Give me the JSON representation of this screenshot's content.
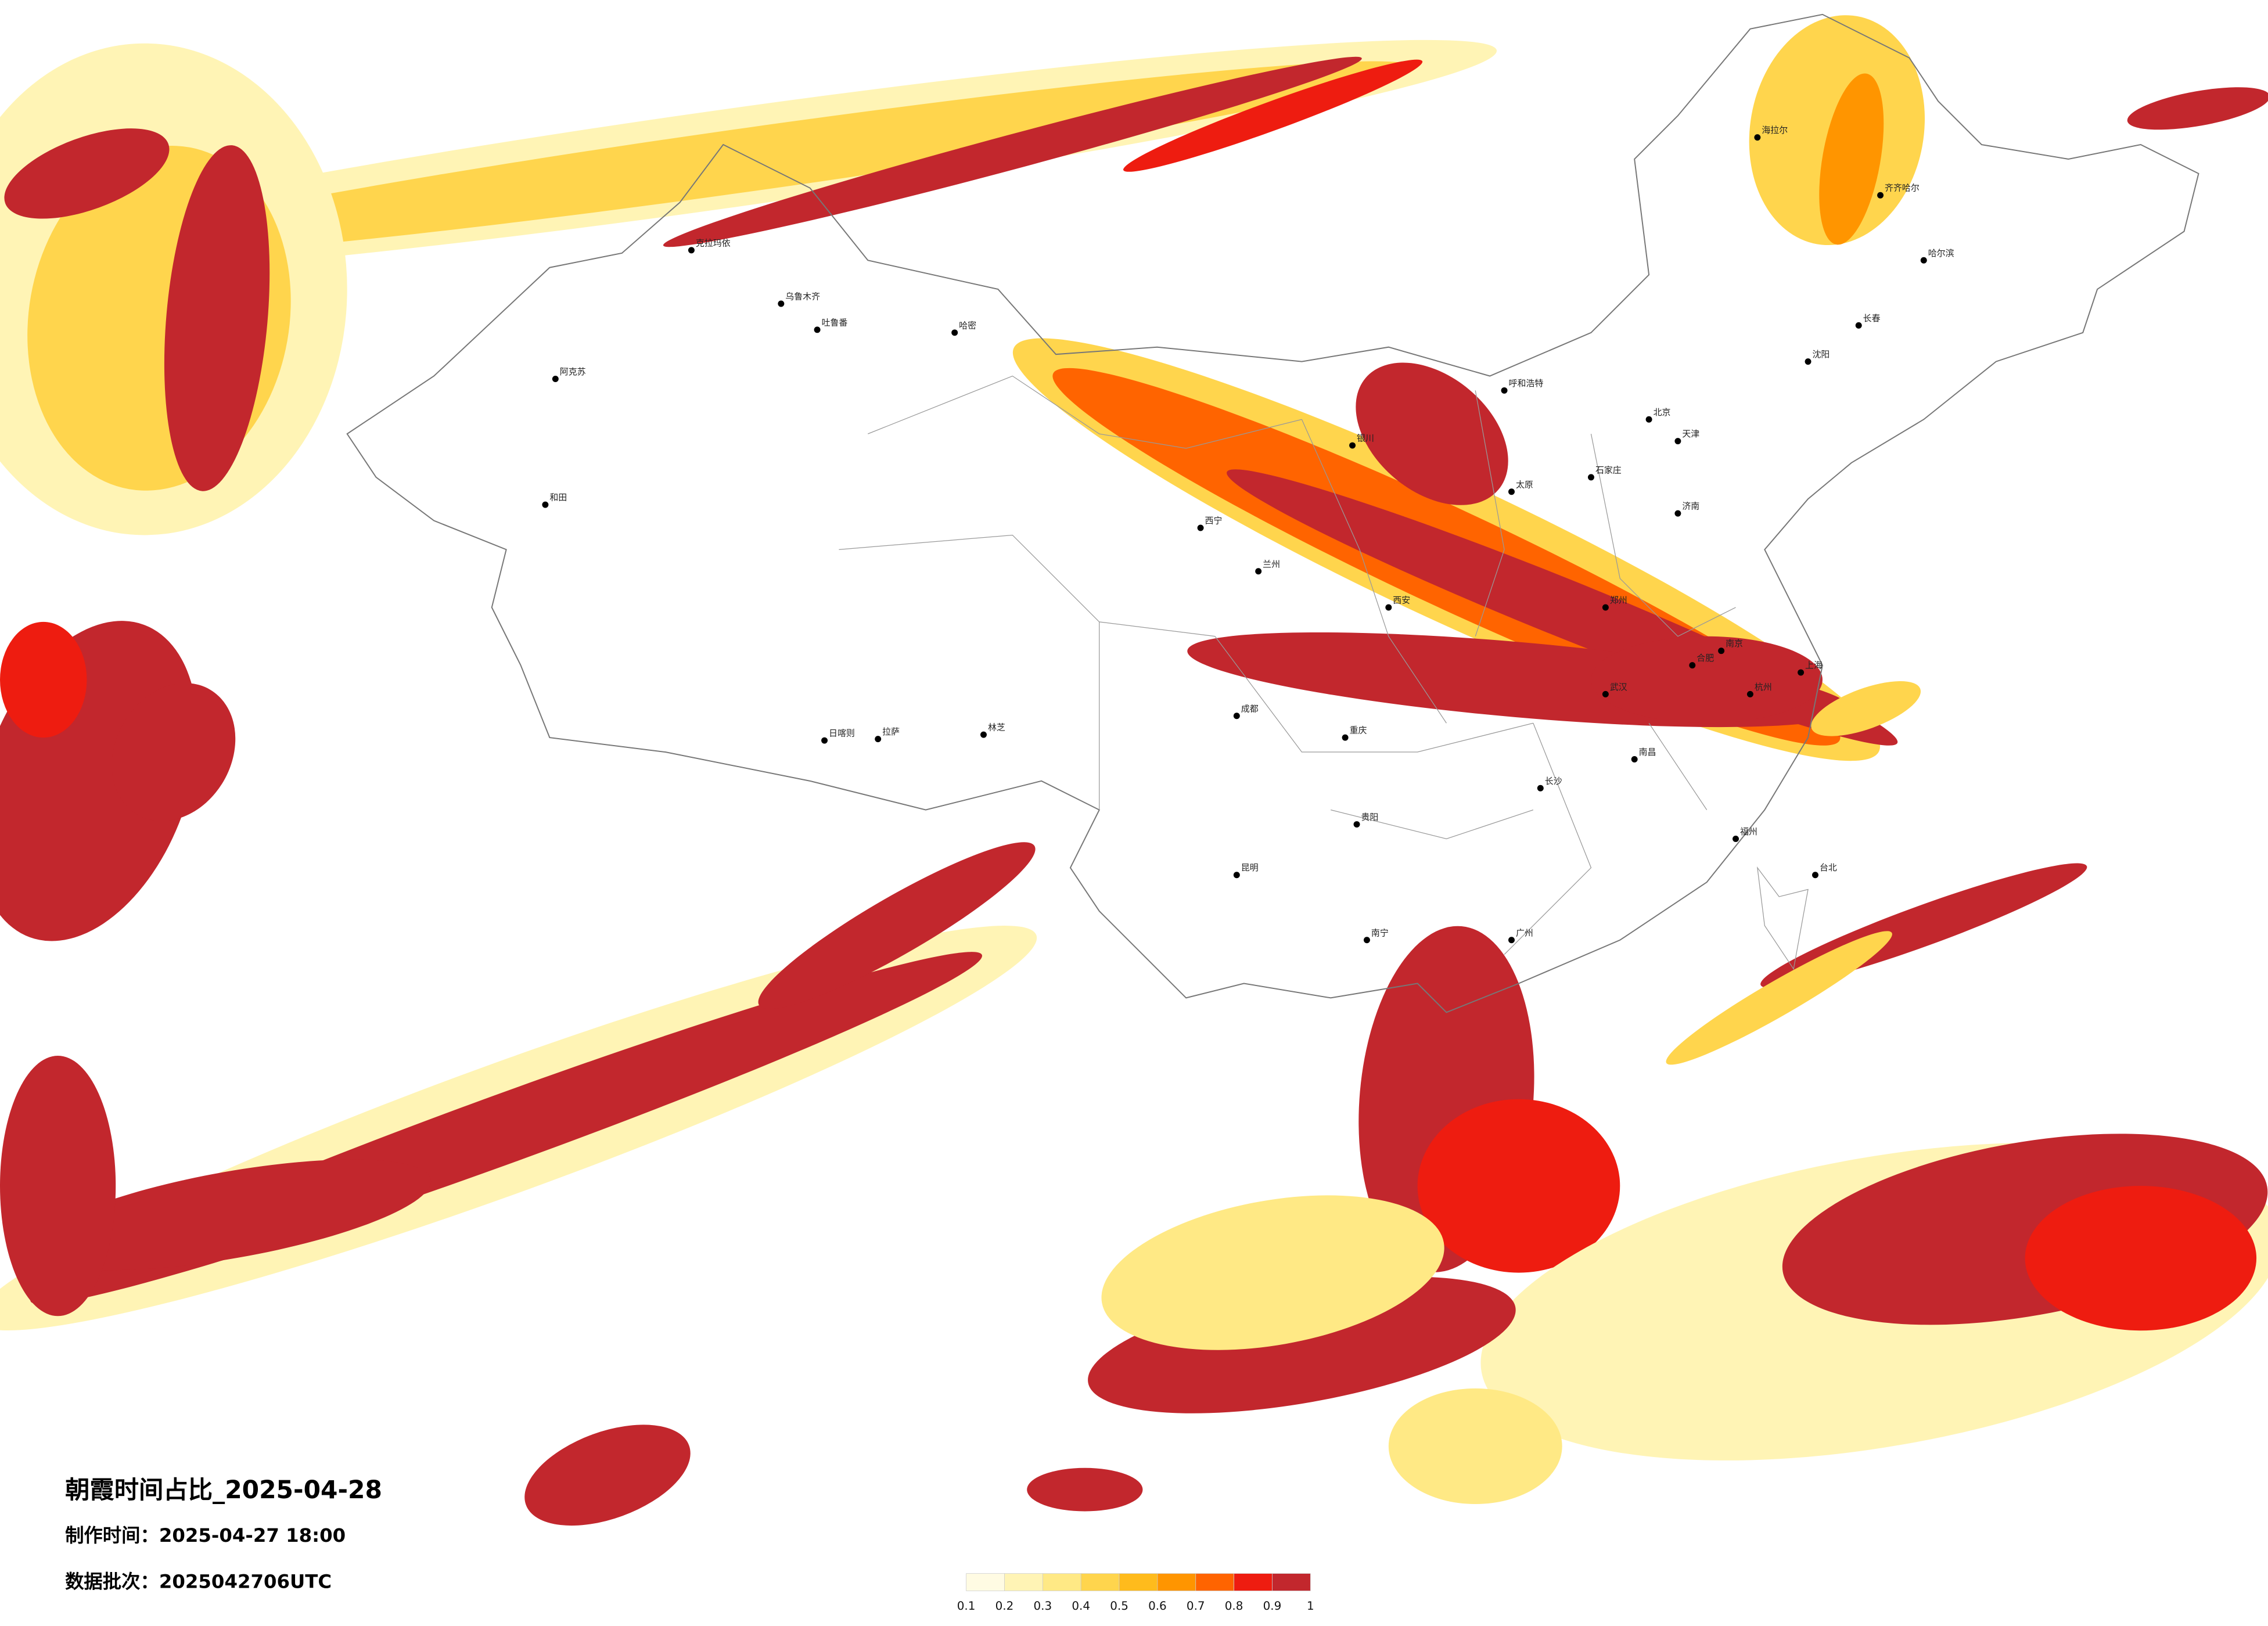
{
  "title": "朝霞时间占比_2025-04-28",
  "production_time": "制作时间：2025-04-27 18:00",
  "data_batch": "数据批次：2025042706UTC",
  "legend": {
    "ticks": [
      0.1,
      0.2,
      0.3,
      0.4,
      0.5,
      0.6,
      0.7,
      0.8,
      0.9,
      1
    ],
    "colors": [
      "#fffbe3",
      "#fff4b5",
      "#ffe985",
      "#ffd54d",
      "#ffbb1c",
      "#ff9500",
      "#ff6400",
      "#ee1c10",
      "#c2272d"
    ]
  },
  "cities": [
    "克拉玛依",
    "阿克苏",
    "和田",
    "哈密",
    "乌鲁木齐",
    "吐鲁番",
    "拉萨",
    "日喀则",
    "林芝",
    "西宁",
    "兰州",
    "银川",
    "呼和浩特",
    "北京",
    "天津",
    "石家庄",
    "太原",
    "郑州",
    "济南",
    "西安",
    "成都",
    "重庆",
    "贵阳",
    "昆明",
    "南宁",
    "广州",
    "长沙",
    "武汉",
    "南昌",
    "杭州",
    "上海",
    "南京",
    "合肥",
    "福州",
    "台北",
    "沈阳",
    "长春",
    "哈尔滨",
    "海拉尔",
    "齐齐哈尔"
  ]
}
